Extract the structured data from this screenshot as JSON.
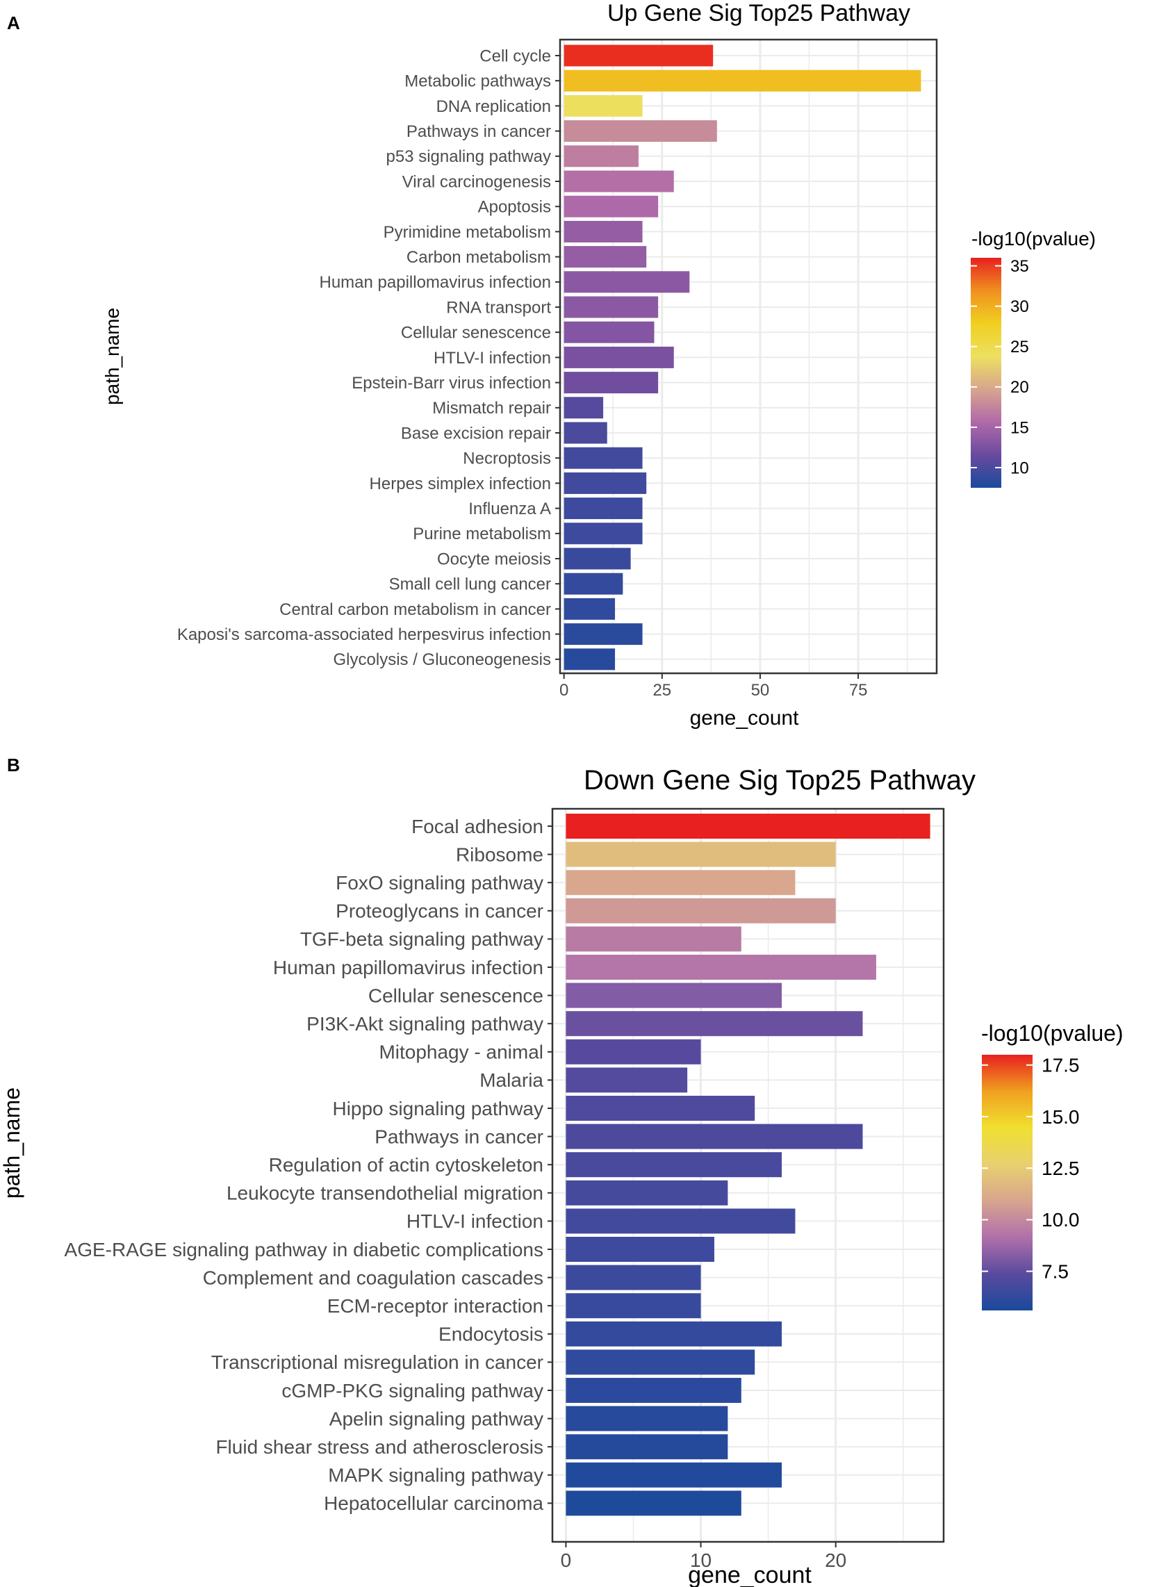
{
  "chart_data": [
    {
      "panel_label": "A",
      "type": "bar",
      "orientation": "horizontal",
      "title": "Up Gene Sig Top25 Pathway",
      "xlabel": "gene_count",
      "ylabel": "path_name",
      "xlim": [
        -1,
        95
      ],
      "xticks": [
        0,
        25,
        50,
        75
      ],
      "grid": true,
      "categories": [
        "Cell cycle",
        "Metabolic pathways",
        "DNA replication",
        "Pathways in cancer",
        "p53 signaling pathway",
        "Viral carcinogenesis",
        "Apoptosis",
        "Pyrimidine metabolism",
        "Carbon metabolism",
        "Human papillomavirus infection",
        "RNA transport",
        "Cellular senescence",
        "HTLV-I infection",
        "Epstein-Barr virus infection",
        "Mismatch repair",
        "Base excision repair",
        "Necroptosis",
        "Herpes simplex infection",
        "Influenza A",
        "Purine metabolism",
        "Oocyte meiosis",
        "Small cell lung cancer",
        "Central carbon metabolism in cancer",
        "Kaposi's sarcoma-associated herpesvirus infection",
        "Glycolysis / Gluconeogenesis"
      ],
      "values": [
        38,
        91,
        20,
        39,
        19,
        28,
        24,
        20,
        21,
        32,
        24,
        23,
        28,
        24,
        10,
        11,
        20,
        21,
        20,
        20,
        17,
        15,
        13,
        20,
        13
      ],
      "color_values": [
        35.5,
        29,
        24,
        18,
        17,
        16,
        15.5,
        14,
        14,
        13.5,
        13.5,
        13,
        12.5,
        12,
        10.5,
        10,
        9.5,
        9.5,
        9.3,
        9.3,
        9.1,
        8.8,
        8.6,
        8.3,
        8.2
      ],
      "colorbar": {
        "title": "-log10(pvalue)",
        "range": [
          7.5,
          36
        ],
        "ticks": [
          10,
          15,
          20,
          25,
          30,
          35
        ],
        "tick_labels": [
          "10",
          "15",
          "20",
          "25",
          "30",
          "35"
        ],
        "colors": [
          "#1a4a9c",
          "#6a4a9e",
          "#b06aa8",
          "#d8a58e",
          "#ece060",
          "#f0d020",
          "#f09020",
          "#e82020"
        ]
      }
    },
    {
      "panel_label": "B",
      "type": "bar",
      "orientation": "horizontal",
      "title": "Down Gene Sig Top25 Pathway",
      "xlabel": "gene_count",
      "ylabel": "path_name",
      "xlim": [
        -1,
        28
      ],
      "xticks": [
        0,
        10,
        20
      ],
      "grid": true,
      "categories": [
        "Focal adhesion",
        "Ribosome",
        "FoxO signaling pathway",
        "Proteoglycans in cancer",
        "TGF-beta signaling pathway",
        "Human papillomavirus infection",
        "Cellular senescence",
        "PI3K-Akt signaling pathway",
        "Mitophagy - animal",
        "Malaria",
        "Hippo signaling pathway",
        "Pathways in cancer",
        "Regulation of actin cytoskeleton",
        "Leukocyte transendothelial migration",
        "HTLV-I infection",
        "AGE-RAGE signaling pathway in diabetic complications",
        "Complement and coagulation cascades",
        "ECM-receptor interaction",
        "Endocytosis",
        "Transcriptional misregulation in cancer",
        "cGMP-PKG signaling pathway",
        "Apelin signaling pathway",
        "Fluid shear stress and atherosclerosis",
        "MAPK signaling pathway",
        "Hepatocellular carcinoma"
      ],
      "values": [
        27,
        20,
        17,
        20,
        13,
        23,
        16,
        22,
        10,
        9,
        14,
        22,
        16,
        12,
        17,
        11,
        10,
        10,
        16,
        14,
        13,
        12,
        12,
        16,
        13
      ],
      "color_values": [
        18,
        11.9,
        11.0,
        10.5,
        9.5,
        9.3,
        8.2,
        7.7,
        7.3,
        7.2,
        7.1,
        7.0,
        6.9,
        6.8,
        6.7,
        6.6,
        6.5,
        6.4,
        6.3,
        6.2,
        6.1,
        6.0,
        5.9,
        5.8,
        5.7
      ],
      "colorbar": {
        "title": "-log10(pvalue)",
        "range": [
          5.6,
          18.0
        ],
        "ticks": [
          7.5,
          10.0,
          12.5,
          15.0,
          17.5
        ],
        "tick_labels": [
          "7.5",
          "10.0",
          "12.5",
          "15.0",
          "17.5"
        ],
        "colors": [
          "#1a4a9c",
          "#5a4a9e",
          "#b070aa",
          "#d8a58e",
          "#e8d070",
          "#f0e030",
          "#f0a020",
          "#e82020"
        ]
      }
    }
  ]
}
